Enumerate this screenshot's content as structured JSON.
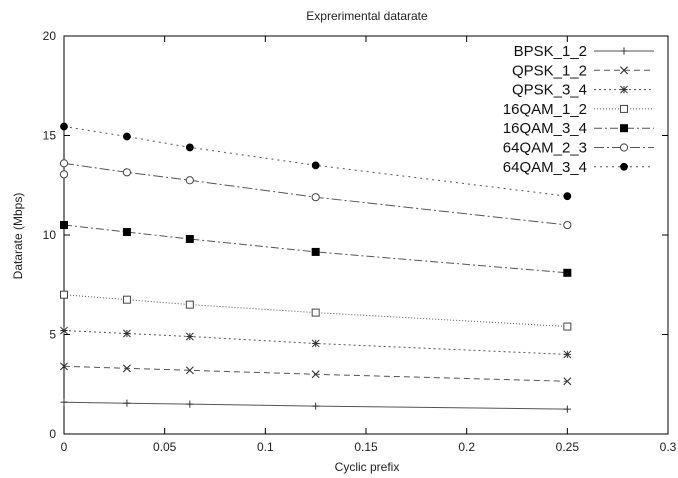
{
  "chart_data": {
    "type": "line",
    "title": "Exprerimental datarate",
    "xlabel": "Cyclic prefix",
    "ylabel": "Datarate (Mbps)",
    "xlim": [
      0,
      0.3
    ],
    "ylim": [
      0,
      20
    ],
    "x_ticks": [
      0,
      0.05,
      0.1,
      0.15,
      0.2,
      0.25,
      0.3
    ],
    "x_tick_labels": [
      "0",
      "0.05",
      "0.1",
      "0.15",
      "0.2",
      "0.25",
      "0.3"
    ],
    "y_ticks": [
      0,
      5,
      10,
      15,
      20
    ],
    "y_tick_labels": [
      "0",
      "5",
      "10",
      "15",
      "20"
    ],
    "grid": false,
    "legend_position": "top-right",
    "x": [
      0,
      0.03125,
      0.0625,
      0.125,
      0.25
    ],
    "series": [
      {
        "name": "BPSK_1_2",
        "marker": "plus",
        "dash": "solid",
        "values": [
          1.6,
          1.55,
          1.5,
          1.4,
          1.25
        ]
      },
      {
        "name": "QPSK_1_2",
        "marker": "cross",
        "dash": "dashed",
        "values": [
          3.4,
          3.3,
          3.2,
          3.0,
          2.65
        ]
      },
      {
        "name": "QPSK_3_4",
        "marker": "star",
        "dash": "dotted",
        "values": [
          5.2,
          5.05,
          4.9,
          4.55,
          4.0
        ]
      },
      {
        "name": "16QAM_1_2",
        "marker": "open-square",
        "dash": "dotted-fine",
        "values": [
          7.0,
          6.75,
          6.5,
          6.1,
          5.4
        ]
      },
      {
        "name": "16QAM_3_4",
        "marker": "filled-square",
        "dash": "dashdot",
        "values": [
          10.5,
          10.15,
          9.8,
          9.15,
          8.1
        ]
      },
      {
        "name": "64QAM_2_3",
        "marker": "open-circle",
        "dash": "dashdot-long",
        "values": [
          13.6,
          13.15,
          12.75,
          11.9,
          10.5
        ]
      },
      {
        "name": "64QAM_3_4",
        "marker": "filled-circle",
        "dash": "dotted-wide",
        "values": [
          15.45,
          14.95,
          14.4,
          13.5,
          11.95
        ]
      }
    ],
    "extra_points": [
      {
        "series": "64QAM_2_3",
        "x": 0,
        "y": 13.05
      }
    ]
  }
}
